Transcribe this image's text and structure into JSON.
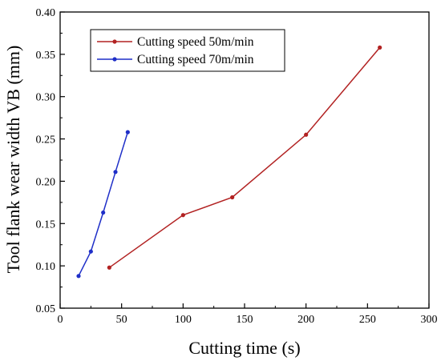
{
  "chart_data": {
    "type": "line",
    "title": "",
    "xlabel": "Cutting time (s)",
    "ylabel": "Tool flank wear width VB (mm)",
    "xlim": [
      0,
      300
    ],
    "ylim": [
      0.05,
      0.4
    ],
    "x_ticks": [
      "0",
      "50",
      "100",
      "150",
      "200",
      "250",
      "300"
    ],
    "y_ticks": [
      "0.05",
      "0.10",
      "0.15",
      "0.20",
      "0.25",
      "0.30",
      "0.35",
      "0.40"
    ],
    "grid": false,
    "legend_position": "top-left",
    "series": [
      {
        "name": "Cutting speed 50m/min",
        "color": "#b22222",
        "x": [
          40,
          100,
          140,
          200,
          260
        ],
        "y": [
          0.098,
          0.16,
          0.181,
          0.255,
          0.358
        ]
      },
      {
        "name": "Cutting speed 70m/min",
        "color": "#1f2fc8",
        "x": [
          15,
          25,
          35,
          45,
          55
        ],
        "y": [
          0.088,
          0.117,
          0.163,
          0.211,
          0.258
        ]
      }
    ]
  }
}
